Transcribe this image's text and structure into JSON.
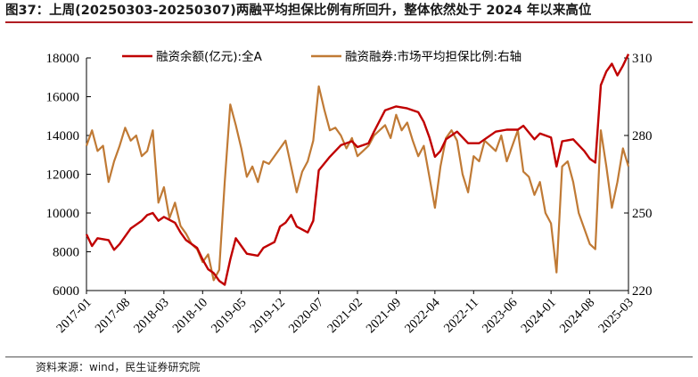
{
  "title": "图37：上周(20250303-20250307)两融平均担保比例有所回升，整体依然处于 2024 年以来高位",
  "source": "资料来源：wind，民生证券研究院",
  "colors": {
    "margin_balance": "#c00000",
    "collateral_ratio": "#c07a35",
    "rule": "#b01c22"
  },
  "chart_data": {
    "type": "line",
    "title": "",
    "x_range": [
      "2017-01",
      "2025-03"
    ],
    "x_ticks": [
      "2017-01",
      "2017-08",
      "2018-03",
      "2018-10",
      "2019-05",
      "2019-12",
      "2020-07",
      "2021-02",
      "2021-09",
      "2022-04",
      "2022-11",
      "2023-06",
      "2024-01",
      "2024-08",
      "2025-03"
    ],
    "y_left": {
      "ticks": [
        "6000",
        "8000",
        "10000",
        "12000",
        "14000",
        "16000",
        "18000"
      ],
      "min": 6000,
      "max": 18000
    },
    "y_right": {
      "ticks": [
        "220",
        "250",
        "280",
        "310"
      ],
      "min": 220,
      "max": 310,
      "scale": "linear"
    },
    "legend_position": "top",
    "grid": false,
    "series": [
      {
        "name": "融资余额(亿元):全A",
        "axis": "left",
        "points": [
          [
            "2017-01",
            8900
          ],
          [
            "2017-02",
            8300
          ],
          [
            "2017-03",
            8700
          ],
          [
            "2017-05",
            8600
          ],
          [
            "2017-06",
            8100
          ],
          [
            "2017-07",
            8400
          ],
          [
            "2017-09",
            9200
          ],
          [
            "2017-11",
            9600
          ],
          [
            "2017-12",
            9900
          ],
          [
            "2018-01",
            10000
          ],
          [
            "2018-02",
            9600
          ],
          [
            "2018-03",
            9800
          ],
          [
            "2018-05",
            9500
          ],
          [
            "2018-06",
            9000
          ],
          [
            "2018-07",
            8600
          ],
          [
            "2018-09",
            8200
          ],
          [
            "2018-10",
            7600
          ],
          [
            "2018-11",
            7100
          ],
          [
            "2018-12",
            6900
          ],
          [
            "2019-01",
            6500
          ],
          [
            "2019-02",
            6300
          ],
          [
            "2019-03",
            7600
          ],
          [
            "2019-04",
            8700
          ],
          [
            "2019-05",
            8300
          ],
          [
            "2019-06",
            7900
          ],
          [
            "2019-08",
            7800
          ],
          [
            "2019-09",
            8200
          ],
          [
            "2019-11",
            8500
          ],
          [
            "2019-12",
            9300
          ],
          [
            "2020-01",
            9500
          ],
          [
            "2020-02",
            9900
          ],
          [
            "2020-03",
            9300
          ],
          [
            "2020-05",
            9000
          ],
          [
            "2020-06",
            9600
          ],
          [
            "2020-07",
            12200
          ],
          [
            "2020-09",
            12900
          ],
          [
            "2020-11",
            13500
          ],
          [
            "2021-01",
            13700
          ],
          [
            "2021-02",
            13400
          ],
          [
            "2021-04",
            13600
          ],
          [
            "2021-05",
            14200
          ],
          [
            "2021-07",
            15300
          ],
          [
            "2021-09",
            15500
          ],
          [
            "2021-11",
            15400
          ],
          [
            "2022-01",
            15200
          ],
          [
            "2022-02",
            14700
          ],
          [
            "2022-03",
            13900
          ],
          [
            "2022-04",
            12900
          ],
          [
            "2022-05",
            13200
          ],
          [
            "2022-06",
            13800
          ],
          [
            "2022-08",
            14200
          ],
          [
            "2022-10",
            13600
          ],
          [
            "2022-12",
            13600
          ],
          [
            "2023-01",
            13800
          ],
          [
            "2023-03",
            14200
          ],
          [
            "2023-05",
            14300
          ],
          [
            "2023-07",
            14300
          ],
          [
            "2023-08",
            14500
          ],
          [
            "2023-10",
            13800
          ],
          [
            "2023-11",
            14100
          ],
          [
            "2024-01",
            13900
          ],
          [
            "2024-02",
            12400
          ],
          [
            "2024-03",
            13700
          ],
          [
            "2024-05",
            13800
          ],
          [
            "2024-07",
            13200
          ],
          [
            "2024-08",
            12800
          ],
          [
            "2024-09",
            12600
          ],
          [
            "2024-10",
            16600
          ],
          [
            "2024-11",
            17300
          ],
          [
            "2024-12",
            17700
          ],
          [
            "2025-01",
            17100
          ],
          [
            "2025-02",
            17600
          ],
          [
            "2025-03",
            18200
          ]
        ]
      },
      {
        "name": "融资融券:市场平均担保比例:右轴",
        "axis": "right",
        "points": [
          [
            "2017-01",
            276
          ],
          [
            "2017-02",
            282
          ],
          [
            "2017-03",
            274
          ],
          [
            "2017-04",
            276
          ],
          [
            "2017-05",
            262
          ],
          [
            "2017-06",
            270
          ],
          [
            "2017-07",
            276
          ],
          [
            "2017-08",
            283
          ],
          [
            "2017-09",
            278
          ],
          [
            "2017-10",
            280
          ],
          [
            "2017-11",
            272
          ],
          [
            "2017-12",
            274
          ],
          [
            "2018-01",
            282
          ],
          [
            "2018-02",
            254
          ],
          [
            "2018-03",
            260
          ],
          [
            "2018-04",
            248
          ],
          [
            "2018-05",
            254
          ],
          [
            "2018-06",
            245
          ],
          [
            "2018-07",
            242
          ],
          [
            "2018-08",
            238
          ],
          [
            "2018-09",
            236
          ],
          [
            "2018-10",
            231
          ],
          [
            "2018-11",
            234
          ],
          [
            "2018-12",
            224
          ],
          [
            "2019-01",
            228
          ],
          [
            "2019-02",
            262
          ],
          [
            "2019-03",
            292
          ],
          [
            "2019-04",
            284
          ],
          [
            "2019-05",
            275
          ],
          [
            "2019-06",
            264
          ],
          [
            "2019-07",
            268
          ],
          [
            "2019-08",
            262
          ],
          [
            "2019-09",
            270
          ],
          [
            "2019-10",
            269
          ],
          [
            "2019-12",
            275
          ],
          [
            "2020-01",
            278
          ],
          [
            "2020-02",
            268
          ],
          [
            "2020-03",
            258
          ],
          [
            "2020-04",
            266
          ],
          [
            "2020-05",
            270
          ],
          [
            "2020-06",
            278
          ],
          [
            "2020-07",
            299
          ],
          [
            "2020-08",
            290
          ],
          [
            "2020-09",
            282
          ],
          [
            "2020-10",
            283
          ],
          [
            "2020-11",
            280
          ],
          [
            "2020-12",
            275
          ],
          [
            "2021-01",
            279
          ],
          [
            "2021-02",
            272
          ],
          [
            "2021-03",
            274
          ],
          [
            "2021-04",
            276
          ],
          [
            "2021-05",
            280
          ],
          [
            "2021-06",
            282
          ],
          [
            "2021-07",
            284
          ],
          [
            "2021-08",
            279
          ],
          [
            "2021-09",
            288
          ],
          [
            "2021-10",
            282
          ],
          [
            "2021-11",
            285
          ],
          [
            "2021-12",
            278
          ],
          [
            "2022-01",
            272
          ],
          [
            "2022-02",
            276
          ],
          [
            "2022-03",
            264
          ],
          [
            "2022-04",
            252
          ],
          [
            "2022-05",
            268
          ],
          [
            "2022-06",
            279
          ],
          [
            "2022-07",
            282
          ],
          [
            "2022-08",
            278
          ],
          [
            "2022-09",
            265
          ],
          [
            "2022-10",
            258
          ],
          [
            "2022-11",
            272
          ],
          [
            "2022-12",
            270
          ],
          [
            "2023-01",
            278
          ],
          [
            "2023-02",
            276
          ],
          [
            "2023-03",
            274
          ],
          [
            "2023-04",
            280
          ],
          [
            "2023-05",
            270
          ],
          [
            "2023-06",
            276
          ],
          [
            "2023-07",
            282
          ],
          [
            "2023-08",
            266
          ],
          [
            "2023-09",
            264
          ],
          [
            "2023-10",
            257
          ],
          [
            "2023-11",
            262
          ],
          [
            "2023-12",
            250
          ],
          [
            "2024-01",
            246
          ],
          [
            "2024-02",
            227
          ],
          [
            "2024-03",
            268
          ],
          [
            "2024-04",
            270
          ],
          [
            "2024-05",
            262
          ],
          [
            "2024-06",
            250
          ],
          [
            "2024-07",
            244
          ],
          [
            "2024-08",
            238
          ],
          [
            "2024-09",
            236
          ],
          [
            "2024-10",
            282
          ],
          [
            "2024-11",
            268
          ],
          [
            "2024-12",
            252
          ],
          [
            "2025-01",
            262
          ],
          [
            "2025-02",
            275
          ],
          [
            "2025-03",
            268
          ]
        ]
      }
    ]
  }
}
